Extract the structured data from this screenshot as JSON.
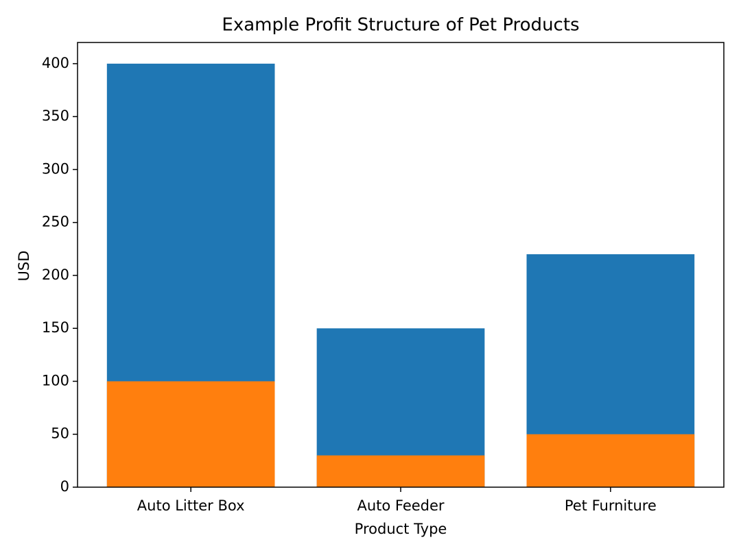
{
  "chart_data": {
    "type": "bar",
    "title": "Example Profit Structure of Pet Products",
    "x_label": "Product Type",
    "y_label": "USD",
    "categories": [
      "Auto Litter Box",
      "Auto Feeder",
      "Pet Furniture"
    ],
    "series": [
      {
        "color": "#1f77b4",
        "values": [
          400,
          150,
          220
        ]
      },
      {
        "color": "#ff7f0e",
        "values": [
          100,
          30,
          50
        ]
      }
    ],
    "ylim": [
      0,
      420
    ],
    "yticks": [
      0,
      50,
      100,
      150,
      200,
      250,
      300,
      350,
      400
    ],
    "grid": false
  }
}
